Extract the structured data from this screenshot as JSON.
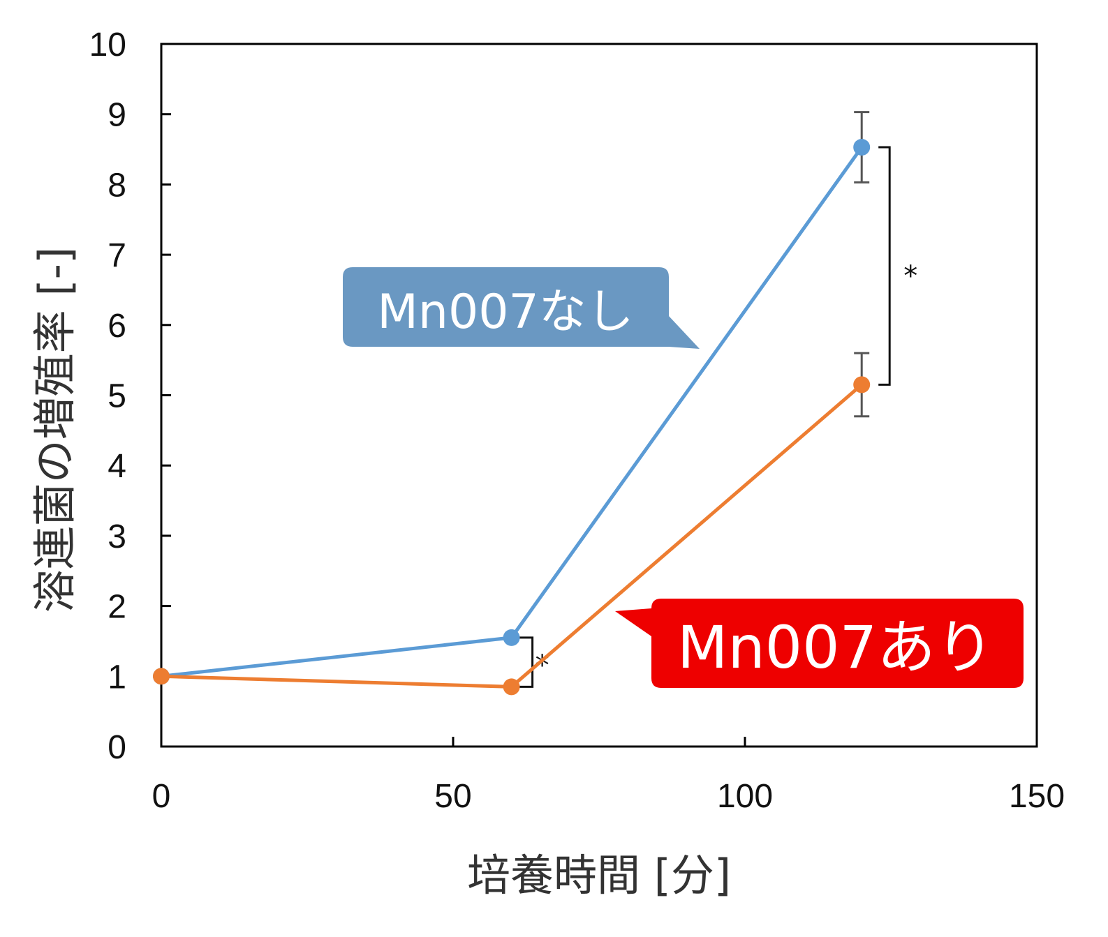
{
  "chart_data": {
    "type": "line",
    "xlabel": "培養時間 [分]",
    "ylabel": "溶連菌の増殖率 [-]",
    "xlim": [
      0,
      150
    ],
    "ylim": [
      0,
      10
    ],
    "x_ticks": [
      "0",
      "50",
      "100",
      "150"
    ],
    "y_ticks": [
      "0",
      "1",
      "2",
      "3",
      "4",
      "5",
      "6",
      "7",
      "8",
      "9",
      "10"
    ],
    "grid": false,
    "series": [
      {
        "name": "Mn007なし",
        "color": "#5b9bd5",
        "x": [
          0,
          60,
          120
        ],
        "y": [
          1.0,
          1.55,
          8.53
        ],
        "error": [
          0,
          0,
          0.5
        ]
      },
      {
        "name": "Mn007あり",
        "color": "#ed7d31",
        "x": [
          0,
          60,
          120
        ],
        "y": [
          1.0,
          0.85,
          5.15
        ],
        "error": [
          0,
          0,
          0.45
        ]
      }
    ],
    "annotations": [
      {
        "label": "Mn007なし",
        "bg_color": "#6a98c2"
      },
      {
        "label": "Mn007あり",
        "bg_color": "#ee0000"
      }
    ],
    "significance": [
      {
        "x": 60,
        "marker": "*"
      },
      {
        "x": 120,
        "marker": "*"
      }
    ]
  }
}
